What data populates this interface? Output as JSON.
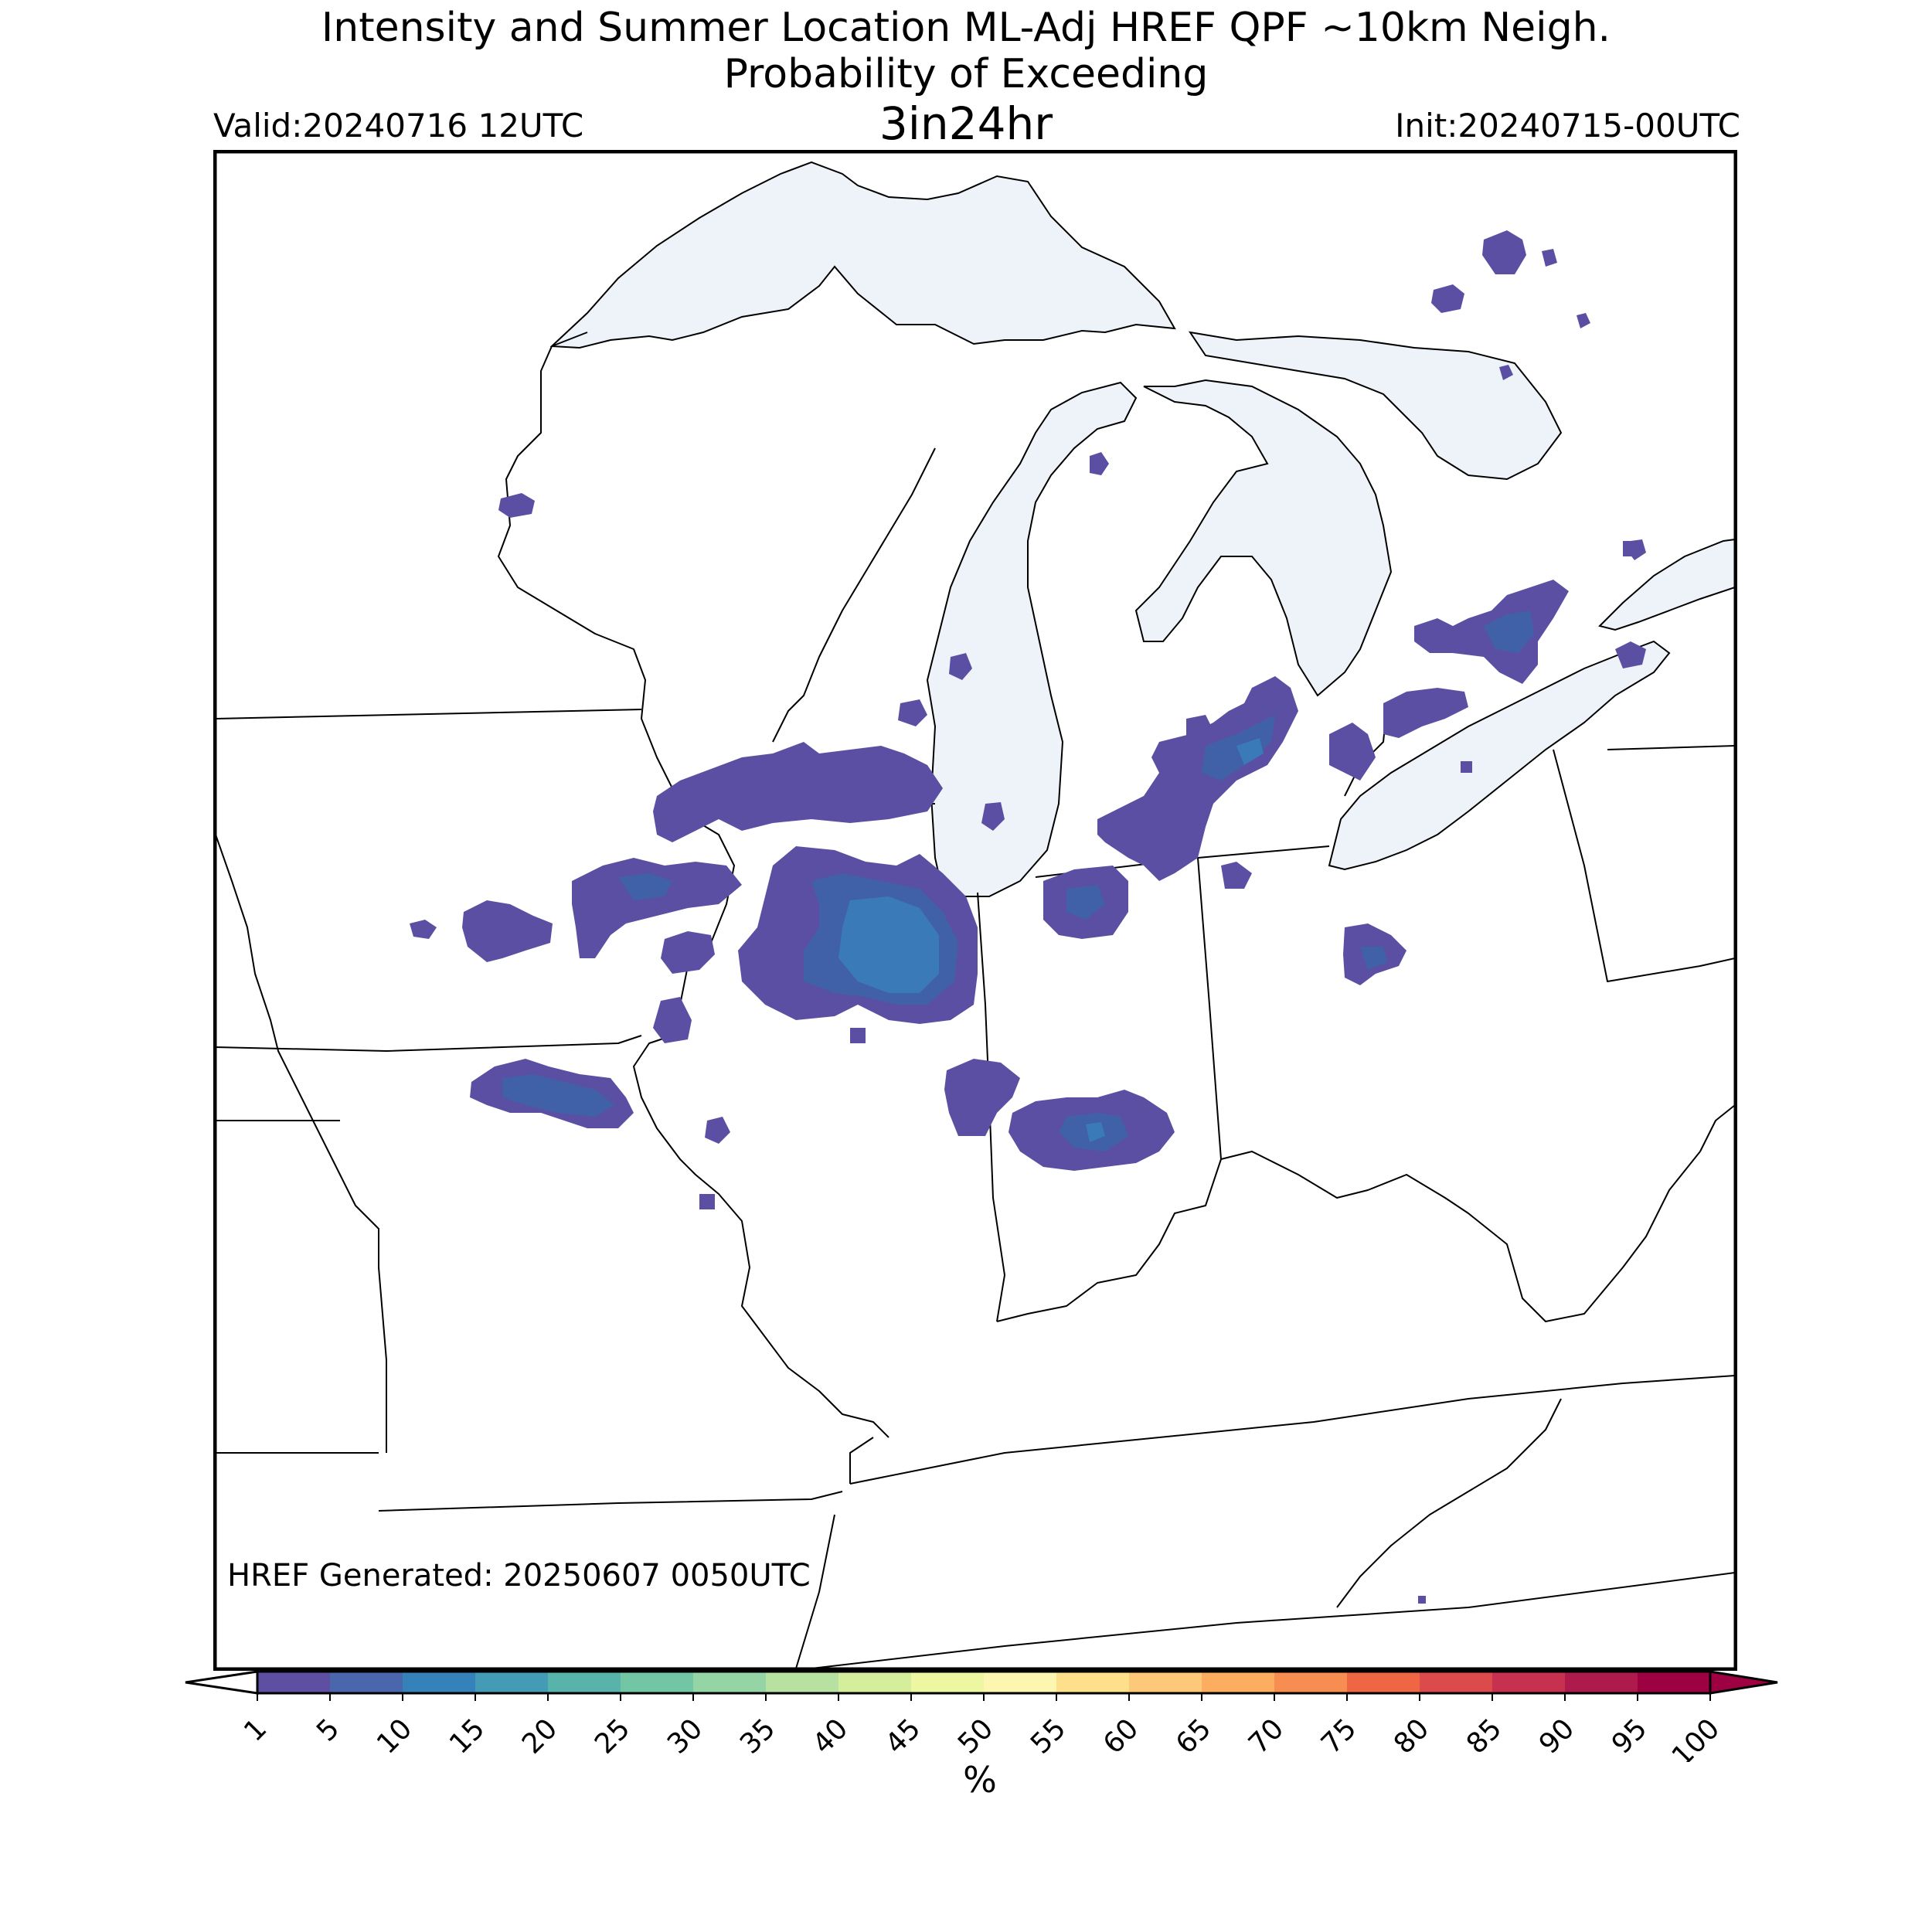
{
  "title": {
    "line1": "Intensity and Summer Location ML-Adj HREF QPF ~10km Neigh.",
    "line2": "Probability of Exceeding",
    "line3": "3in24hr"
  },
  "valid_label": "Valid:20240716 12UTC",
  "init_label": "Init:20240715-00UTC",
  "generated_label": "HREF Generated: 20250607 0050UTC",
  "colors": {
    "lake_fill": "#eef3f9",
    "border": "#000000",
    "prob_1_5": "#5b4fa3",
    "prob_5_10": "#4060a8",
    "prob_10_15": "#3a7ab8"
  },
  "colorbar": {
    "unit_label": "%",
    "ticks": [
      "1",
      "5",
      "10",
      "15",
      "20",
      "25",
      "30",
      "35",
      "40",
      "45",
      "50",
      "55",
      "60",
      "65",
      "70",
      "75",
      "80",
      "85",
      "90",
      "95",
      "100"
    ],
    "colors": [
      "#5e4fa2",
      "#4a66ad",
      "#3582ba",
      "#439bb5",
      "#58b3ab",
      "#73c6a5",
      "#95d4a4",
      "#b6e1a1",
      "#d5ee9b",
      "#edf7a2",
      "#fdf6b0",
      "#fee08b",
      "#fdc877",
      "#fdad60",
      "#f88d52",
      "#ef6645",
      "#dc4a4c",
      "#c7304e",
      "#ad1a4b",
      "#9e0142"
    ]
  }
}
